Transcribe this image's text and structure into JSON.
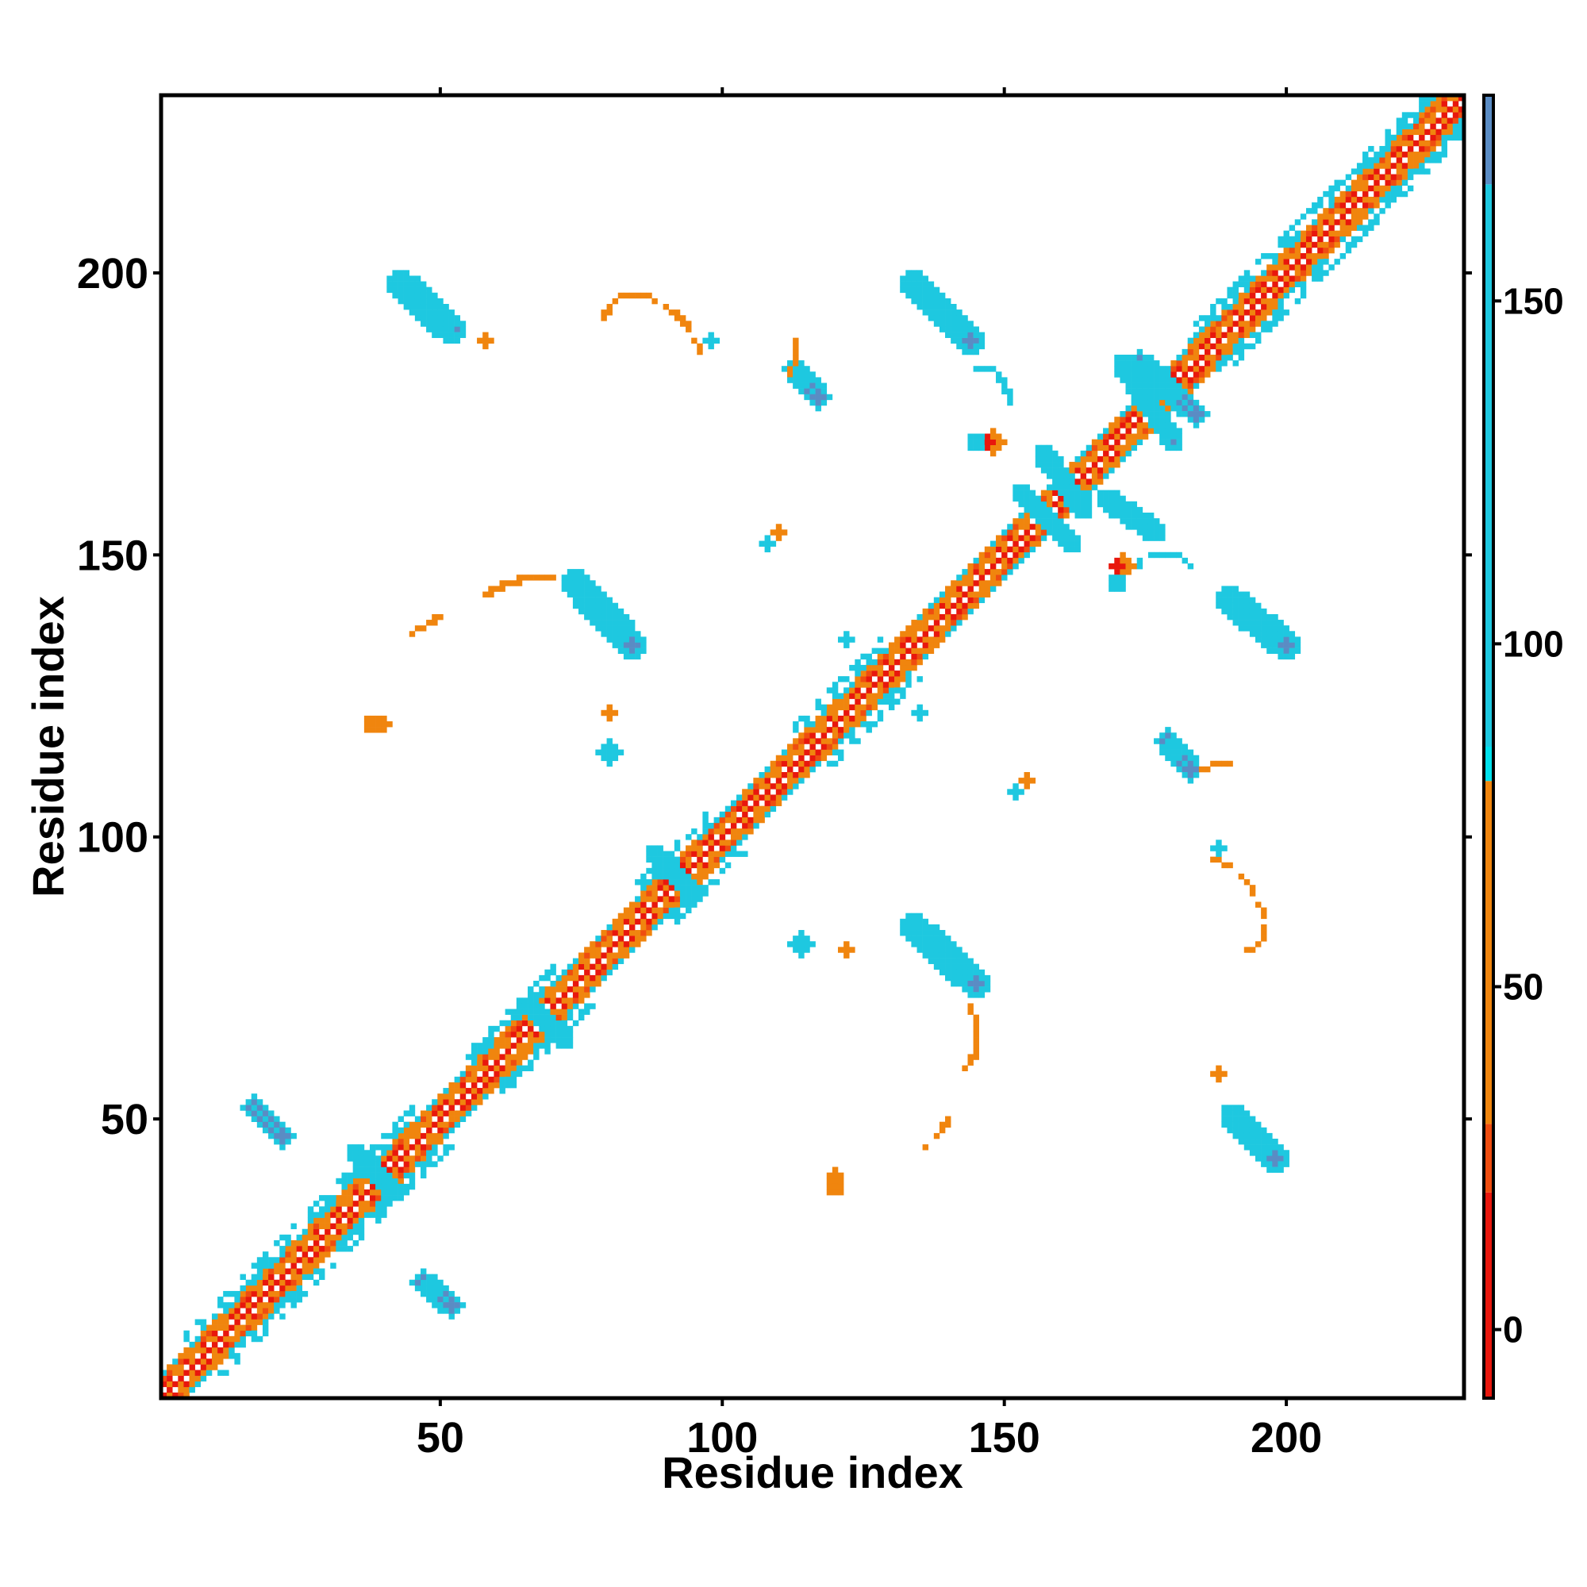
{
  "chart_data": {
    "type": "heatmap",
    "title": "",
    "xlabel": "Residue index",
    "ylabel": "Residue index",
    "xlim": [
      1,
      231
    ],
    "ylim": [
      1,
      231
    ],
    "x_ticks": [
      50,
      100,
      150,
      200
    ],
    "y_ticks": [
      50,
      100,
      150,
      200
    ],
    "x_tick_labels": [
      "50",
      "100",
      "150",
      "200"
    ],
    "y_tick_labels": [
      "50",
      "100",
      "150",
      "200"
    ],
    "grid": false,
    "colorbar": {
      "range": [
        -10,
        180
      ],
      "ticks": [
        0,
        50,
        100,
        150
      ],
      "tick_labels": [
        "0",
        "50",
        "100",
        "150"
      ],
      "bins": [
        {
          "from": -10,
          "to": 20,
          "color": "#e8170d"
        },
        {
          "from": 20,
          "to": 30,
          "color": "#ef4d10"
        },
        {
          "from": 30,
          "to": 80,
          "color": "#f0850e"
        },
        {
          "from": 80,
          "to": 85,
          "color": "#00e0ec"
        },
        {
          "from": 85,
          "to": 167,
          "color": "#1ec8e0"
        },
        {
          "from": 167,
          "to": 180,
          "color": "#5a8cc4"
        },
        {
          "from": 180,
          "to": 183,
          "color": "#ffffff"
        }
      ]
    },
    "diagonal_band": {
      "from": 1,
      "to": 231,
      "half_width": 4
    },
    "features": [
      {
        "kind": "segment",
        "value": 170,
        "start": [
          43,
          198
        ],
        "end": [
          52,
          190
        ],
        "width": 2.4
      },
      {
        "kind": "segment",
        "value": 170,
        "start": [
          134,
          198
        ],
        "end": [
          144,
          188
        ],
        "width": 2.4
      },
      {
        "kind": "segment",
        "value": 170,
        "start": [
          74,
          145
        ],
        "end": [
          84,
          134
        ],
        "width": 2.4
      },
      {
        "kind": "segment",
        "value": 170,
        "start": [
          190,
          142
        ],
        "end": [
          200,
          134
        ],
        "width": 2.4
      },
      {
        "kind": "segment",
        "value": 170,
        "start": [
          134,
          84
        ],
        "end": [
          145,
          74
        ],
        "width": 2.4
      },
      {
        "kind": "segment",
        "value": 170,
        "start": [
          191,
          50
        ],
        "end": [
          198,
          43
        ],
        "width": 2.4
      },
      {
        "kind": "segment",
        "value": 170,
        "start": [
          17,
          52
        ],
        "end": [
          22,
          47
        ],
        "width": 2.0
      },
      {
        "kind": "segment",
        "value": 170,
        "start": [
          47,
          21
        ],
        "end": [
          52,
          17
        ],
        "width": 2.0
      },
      {
        "kind": "segment",
        "value": 170,
        "start": [
          113,
          183
        ],
        "end": [
          117,
          178
        ],
        "width": 2.0
      },
      {
        "kind": "segment",
        "value": 170,
        "start": [
          179,
          117
        ],
        "end": [
          183,
          112
        ],
        "width": 2.0
      },
      {
        "kind": "segment",
        "value": 170,
        "start": [
          174,
          184
        ],
        "end": [
          184,
          175
        ],
        "width": 2.0
      },
      {
        "kind": "segment",
        "value": 170,
        "start": [
          171,
          184
        ],
        "end": [
          180,
          170
        ],
        "width": 1.8
      },
      {
        "kind": "segment",
        "value": 95,
        "start": [
          168,
          160
        ],
        "end": [
          177,
          154
        ],
        "width": 1.8
      },
      {
        "kind": "segment",
        "value": 95,
        "start": [
          153,
          161
        ],
        "end": [
          162,
          152
        ],
        "width": 1.8
      },
      {
        "kind": "segment",
        "value": 95,
        "start": [
          157,
          168
        ],
        "end": [
          164,
          158
        ],
        "width": 1.5
      },
      {
        "kind": "segment",
        "value": 95,
        "start": [
          95,
          90
        ],
        "end": [
          88,
          97
        ],
        "width": 1.5
      },
      {
        "kind": "segment",
        "value": 95,
        "start": [
          66,
          70
        ],
        "end": [
          72,
          64
        ],
        "width": 1.5
      },
      {
        "kind": "segment",
        "value": 95,
        "start": [
          35,
          44
        ],
        "end": [
          42,
          37
        ],
        "width": 1.5
      },
      {
        "kind": "blob",
        "value": 95,
        "center": [
          80,
          115
        ],
        "r": 2.2
      },
      {
        "kind": "blob",
        "value": 95,
        "center": [
          114,
          81
        ],
        "r": 2.2
      },
      {
        "kind": "blob",
        "value": 95,
        "center": [
          51,
          190
        ],
        "r": 1.6
      },
      {
        "kind": "blob",
        "value": 95,
        "center": [
          190,
          51
        ],
        "r": 1.6
      },
      {
        "kind": "blob",
        "value": 40,
        "center": [
          148,
          170
        ],
        "r": 2.0
      },
      {
        "kind": "blob",
        "value": 40,
        "center": [
          171,
          148
        ],
        "r": 2.0
      },
      {
        "kind": "blob",
        "value": 10,
        "center": [
          147,
          170
        ],
        "r": 1.0
      },
      {
        "kind": "blob",
        "value": 10,
        "center": [
          170,
          148
        ],
        "r": 1.0
      },
      {
        "kind": "blob",
        "value": 95,
        "center": [
          145,
          170
        ],
        "r": 1.6
      },
      {
        "kind": "blob",
        "value": 95,
        "center": [
          170,
          145
        ],
        "r": 1.6
      },
      {
        "kind": "blob",
        "value": 40,
        "center": [
          110,
          154
        ],
        "r": 1.2
      },
      {
        "kind": "blob",
        "value": 40,
        "center": [
          154,
          110
        ],
        "r": 1.2
      },
      {
        "kind": "blob",
        "value": 40,
        "center": [
          40,
          120
        ],
        "r": 1.4
      },
      {
        "kind": "blob",
        "value": 40,
        "center": [
          120,
          40
        ],
        "r": 1.4
      },
      {
        "kind": "blob",
        "value": 95,
        "center": [
          152,
          108
        ],
        "r": 1.2
      },
      {
        "kind": "blob",
        "value": 95,
        "center": [
          108,
          152
        ],
        "r": 1.2
      },
      {
        "kind": "arc",
        "value": 60,
        "points": [
          [
            79,
            192
          ],
          [
            82,
            196
          ],
          [
            86,
            196
          ],
          [
            90,
            194
          ],
          [
            94,
            190
          ],
          [
            96,
            186
          ]
        ]
      },
      {
        "kind": "arc",
        "value": 60,
        "points": [
          [
            193,
            80
          ],
          [
            196,
            82
          ],
          [
            196,
            86
          ],
          [
            194,
            90
          ],
          [
            191,
            94
          ],
          [
            187,
            96
          ]
        ]
      },
      {
        "kind": "arc",
        "value": 60,
        "points": [
          [
            58,
            143
          ],
          [
            62,
            145
          ],
          [
            66,
            146
          ],
          [
            70,
            146
          ]
        ]
      },
      {
        "kind": "arc",
        "value": 60,
        "points": [
          [
            143,
            58
          ],
          [
            145,
            62
          ],
          [
            145,
            66
          ],
          [
            144,
            70
          ]
        ]
      },
      {
        "kind": "arc",
        "value": 95,
        "points": [
          [
            144,
            183
          ],
          [
            148,
            183
          ],
          [
            150,
            180
          ],
          [
            151,
            177
          ]
        ]
      },
      {
        "kind": "arc",
        "value": 95,
        "points": [
          [
            173,
            148
          ],
          [
            176,
            150
          ],
          [
            180,
            150
          ],
          [
            183,
            148
          ]
        ]
      },
      {
        "kind": "arc",
        "value": 60,
        "points": [
          [
            136,
            45
          ],
          [
            139,
            48
          ],
          [
            140,
            50
          ]
        ]
      },
      {
        "kind": "arc",
        "value": 60,
        "points": [
          [
            45,
            136
          ],
          [
            48,
            138
          ],
          [
            50,
            139
          ]
        ]
      },
      {
        "kind": "arc",
        "value": 30,
        "points": [
          [
            112,
            182
          ],
          [
            113,
            185
          ],
          [
            113,
            188
          ]
        ]
      },
      {
        "kind": "arc",
        "value": 30,
        "points": [
          [
            185,
            112
          ],
          [
            188,
            113
          ],
          [
            191,
            113
          ]
        ]
      },
      {
        "kind": "blob",
        "value": 60,
        "center": [
          120,
          38
        ],
        "r": 1.5
      },
      {
        "kind": "blob",
        "value": 60,
        "center": [
          38,
          120
        ],
        "r": 1.5
      },
      {
        "kind": "blob",
        "value": 60,
        "center": [
          188,
          58
        ],
        "r": 1.3
      },
      {
        "kind": "blob",
        "value": 60,
        "center": [
          58,
          188
        ],
        "r": 1.3
      },
      {
        "kind": "blob",
        "value": 60,
        "center": [
          122,
          80
        ],
        "r": 1.2
      },
      {
        "kind": "blob",
        "value": 60,
        "center": [
          80,
          122
        ],
        "r": 1.2
      },
      {
        "kind": "blob",
        "value": 95,
        "center": [
          135,
          122
        ],
        "r": 1.2
      },
      {
        "kind": "blob",
        "value": 95,
        "center": [
          122,
          135
        ],
        "r": 1.2
      },
      {
        "kind": "blob",
        "value": 95,
        "center": [
          188,
          98
        ],
        "r": 1.2
      },
      {
        "kind": "blob",
        "value": 95,
        "center": [
          98,
          188
        ],
        "r": 1.2
      }
    ]
  }
}
